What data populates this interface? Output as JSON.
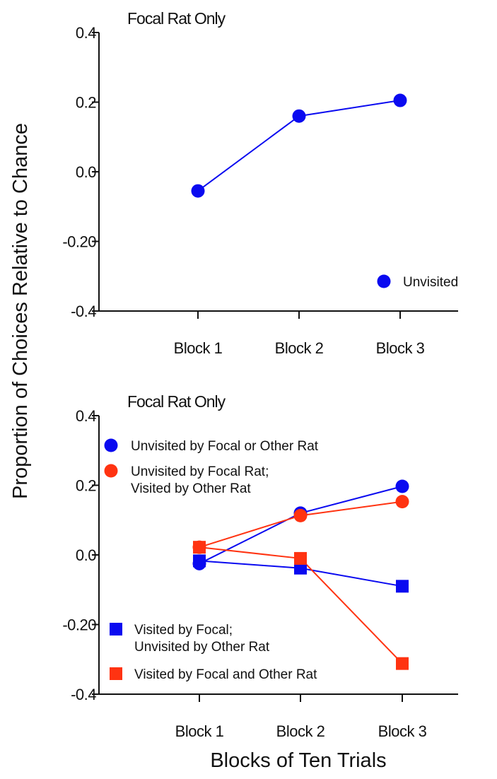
{
  "y_axis_title": "Proportion of Choices Relative to Chance",
  "x_axis_title": "Blocks of Ten Trials",
  "chart_data": [
    {
      "type": "line",
      "title": "Focal Rat Only",
      "categories": [
        "Block 1",
        "Block 2",
        "Block 3"
      ],
      "ylim": [
        -0.4,
        0.4
      ],
      "yticks": [
        {
          "value": 0.4,
          "label": "0.4"
        },
        {
          "value": 0.2,
          "label": "0.2"
        },
        {
          "value": 0.0,
          "label": "0.0"
        },
        {
          "value": -0.2,
          "label": "-0.20"
        },
        {
          "value": -0.4,
          "label": "-0.4"
        }
      ],
      "legend_position": "bottom-right",
      "series": [
        {
          "name": "Unvisited",
          "marker": "circle",
          "color": "#0a0af0",
          "values": [
            -0.055,
            0.16,
            0.205
          ]
        }
      ]
    },
    {
      "type": "line",
      "title": "Focal Rat Only",
      "categories": [
        "Block 1",
        "Block 2",
        "Block 3"
      ],
      "ylim": [
        -0.4,
        0.4
      ],
      "yticks": [
        {
          "value": 0.4,
          "label": "0.4"
        },
        {
          "value": 0.2,
          "label": "0.2"
        },
        {
          "value": 0.0,
          "label": "0.0"
        },
        {
          "value": -0.2,
          "label": "-0.20"
        },
        {
          "value": -0.4,
          "label": "-0.4"
        }
      ],
      "legend_position": "left",
      "series": [
        {
          "name": "Unvisited by Focal or Other Rat",
          "marker": "circle",
          "color": "#0a0af0",
          "values": [
            -0.025,
            0.12,
            0.197
          ]
        },
        {
          "name": "Unvisited by Focal Rat; Visited by Other Rat",
          "marker": "circle",
          "color": "#ff3311",
          "values": [
            0.022,
            0.113,
            0.153
          ]
        },
        {
          "name": "Visited by Focal; Unvisited by Other Rat",
          "marker": "square",
          "color": "#0a0af0",
          "values": [
            -0.017,
            -0.038,
            -0.09
          ]
        },
        {
          "name": "Visited by Focal and Other Rat",
          "marker": "square",
          "color": "#ff3311",
          "values": [
            0.022,
            -0.01,
            -0.312
          ]
        }
      ]
    }
  ],
  "legend_text": {
    "top": [
      [
        "Unvisited"
      ]
    ],
    "bottom": [
      [
        "Unvisited by Focal or Other Rat"
      ],
      [
        "Unvisited by Focal Rat;",
        "Visited by Other Rat"
      ],
      [
        "Visited by Focal;",
        "Unvisited by Other Rat"
      ],
      [
        "Visited by Focal and Other Rat"
      ]
    ]
  }
}
